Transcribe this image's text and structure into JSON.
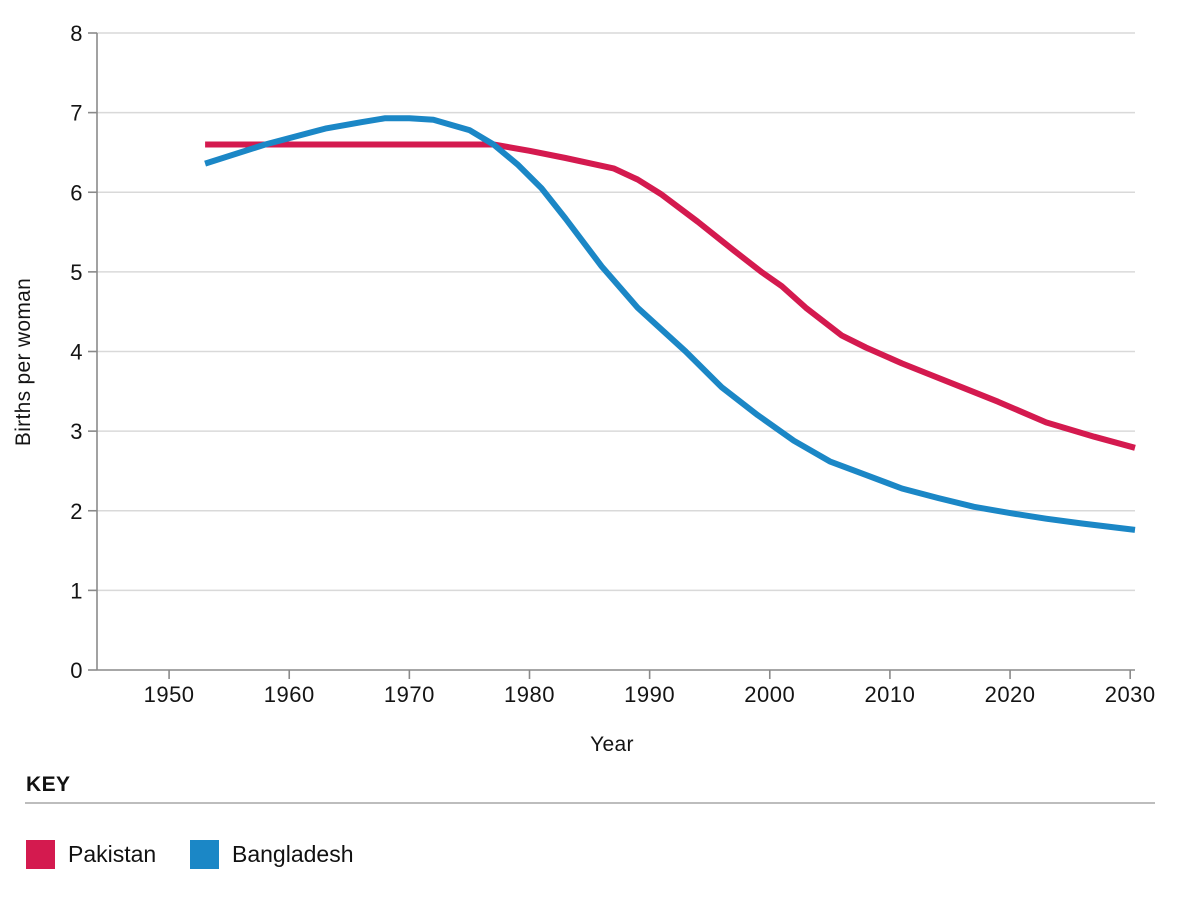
{
  "chart_data": {
    "type": "line",
    "title": "",
    "xlabel": "Year",
    "ylabel": "Births per woman",
    "xlim": [
      1944,
      2030.4
    ],
    "ylim": [
      0,
      8
    ],
    "x_ticks": [
      1950,
      1960,
      1970,
      1980,
      1990,
      2000,
      2010,
      2020,
      2030
    ],
    "y_ticks": [
      0,
      1,
      2,
      3,
      4,
      5,
      6,
      7,
      8
    ],
    "grid": "horizontal-only",
    "legend_position": "key-panel-below",
    "series": [
      {
        "name": "Pakistan",
        "color": "#d41a4f",
        "points": [
          [
            1953,
            6.6
          ],
          [
            1958,
            6.6
          ],
          [
            1963,
            6.6
          ],
          [
            1968,
            6.6
          ],
          [
            1973,
            6.6
          ],
          [
            1977,
            6.6
          ],
          [
            1980,
            6.52
          ],
          [
            1983,
            6.43
          ],
          [
            1987,
            6.3
          ],
          [
            1989,
            6.16
          ],
          [
            1991,
            5.97
          ],
          [
            1994,
            5.63
          ],
          [
            1997,
            5.27
          ],
          [
            1999.3,
            5.0
          ],
          [
            2001,
            4.82
          ],
          [
            2003,
            4.55
          ],
          [
            2006,
            4.2
          ],
          [
            2008,
            4.05
          ],
          [
            2011,
            3.85
          ],
          [
            2013,
            3.73
          ],
          [
            2016,
            3.55
          ],
          [
            2019,
            3.37
          ],
          [
            2023,
            3.11
          ],
          [
            2027,
            2.93
          ],
          [
            2030.4,
            2.79
          ]
        ]
      },
      {
        "name": "Bangladesh",
        "color": "#1b87c6",
        "points": [
          [
            1953,
            6.36
          ],
          [
            1958,
            6.6
          ],
          [
            1963,
            6.8
          ],
          [
            1966,
            6.88
          ],
          [
            1968,
            6.93
          ],
          [
            1970,
            6.93
          ],
          [
            1972,
            6.91
          ],
          [
            1975,
            6.78
          ],
          [
            1977,
            6.6
          ],
          [
            1979,
            6.35
          ],
          [
            1981,
            6.05
          ],
          [
            1983,
            5.67
          ],
          [
            1986,
            5.07
          ],
          [
            1989,
            4.55
          ],
          [
            1993,
            4.0
          ],
          [
            1996,
            3.55
          ],
          [
            1999,
            3.2
          ],
          [
            2002,
            2.88
          ],
          [
            2005,
            2.62
          ],
          [
            2008,
            2.45
          ],
          [
            2011,
            2.28
          ],
          [
            2014,
            2.16
          ],
          [
            2017,
            2.05
          ],
          [
            2020,
            1.97
          ],
          [
            2023,
            1.9
          ],
          [
            2026,
            1.84
          ],
          [
            2030.4,
            1.76
          ]
        ]
      }
    ]
  },
  "key_panel": {
    "title": "KEY",
    "entries": [
      {
        "label": "Pakistan",
        "color": "#d41a4f"
      },
      {
        "label": "Bangladesh",
        "color": "#1b87c6"
      }
    ]
  },
  "style_colors": {
    "axis": "#8a8a8a",
    "grid": "#d9d9d9",
    "tick": "#8a8a8a",
    "text": "#141414",
    "key_rule": "#bdbdbd",
    "background": "#ffffff"
  }
}
